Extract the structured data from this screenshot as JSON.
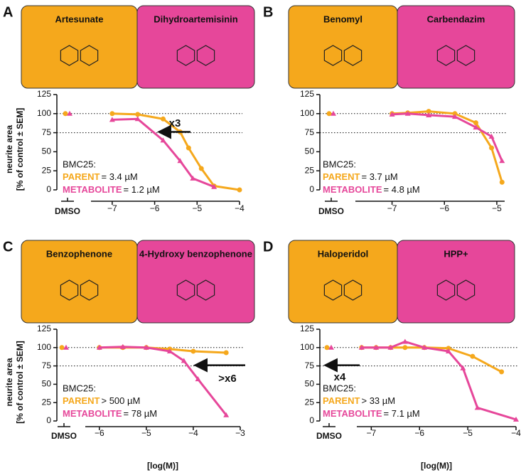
{
  "chart_data": [
    {
      "type": "line",
      "panel": "A",
      "parent_name": "Artesunate",
      "metabolite_name": "Dihydroartemisinin",
      "ylabel": [
        "neurite area",
        "[% of control ± SEM]"
      ],
      "dmso_label": "DMSO",
      "bmc_label": "BMC25:",
      "annotation": "x3",
      "xlim": [
        -7.5,
        -4
      ],
      "xticks": [
        {
          "value": -7,
          "label": "−7"
        },
        {
          "value": -6,
          "label": "−6"
        },
        {
          "value": -5,
          "label": "−5"
        },
        {
          "value": -4,
          "label": "−4"
        }
      ],
      "ylim": [
        0,
        125
      ],
      "yticks": [
        0,
        25,
        50,
        75,
        100,
        125
      ],
      "reference_lines": [
        100,
        75
      ],
      "series": [
        {
          "name": "PARENT",
          "color": "#f5a81c",
          "bmc": "= 3.4 µM",
          "dmso": 100,
          "x": [
            -7,
            -6.4,
            -5.8,
            -5.4,
            -5.2,
            -4.9,
            -4.6,
            -4
          ],
          "values": [
            100,
            99,
            93,
            76,
            55,
            28,
            5,
            0
          ]
        },
        {
          "name": "METABOLITE",
          "color": "#e6479a",
          "bmc": "=  1.2 µM",
          "dmso": 100,
          "x": [
            -7,
            -6.4,
            -5.8,
            -5.4,
            -5.1,
            -4.6
          ],
          "values": [
            92,
            93,
            65,
            38,
            15,
            4
          ]
        }
      ]
    },
    {
      "type": "line",
      "panel": "B",
      "parent_name": "Benomyl",
      "metabolite_name": "Carbendazim",
      "dmso_label": "DMSO",
      "bmc_label": "BMC25:",
      "xlim": [
        -7.7,
        -4.85
      ],
      "xticks": [
        {
          "value": -7,
          "label": "−7"
        },
        {
          "value": -6,
          "label": "−6"
        },
        {
          "value": -5,
          "label": "−5"
        }
      ],
      "ylim": [
        0,
        125
      ],
      "yticks": [
        0,
        25,
        50,
        75,
        100,
        125
      ],
      "reference_lines": [
        100,
        75
      ],
      "series": [
        {
          "name": "PARENT",
          "color": "#f5a81c",
          "bmc": "= 3.7 µM",
          "dmso": 100,
          "x": [
            -7,
            -6.7,
            -6.3,
            -5.8,
            -5.4,
            -5.1,
            -4.9
          ],
          "values": [
            100,
            101,
            103,
            100,
            88,
            55,
            10
          ]
        },
        {
          "name": "METABOLITE",
          "color": "#e6479a",
          "bmc": "= 4.8 µM",
          "dmso": 100,
          "x": [
            -7,
            -6.7,
            -6.3,
            -5.8,
            -5.4,
            -5.1,
            -4.9
          ],
          "values": [
            99,
            100,
            98,
            96,
            82,
            70,
            38
          ]
        }
      ]
    },
    {
      "type": "line",
      "panel": "C",
      "parent_name": "Benzophenone",
      "metabolite_name": "4-Hydroxy benzophenone",
      "ylabel": [
        "neurite area",
        "[% of control ± SEM]"
      ],
      "xlabel": "[log(M)]",
      "dmso_label": "DMSO",
      "bmc_label": "BMC25:",
      "annotation": ">x6",
      "xlim": [
        -6.3,
        -3
      ],
      "xticks": [
        {
          "value": -6,
          "label": "−6"
        },
        {
          "value": -5,
          "label": "−5"
        },
        {
          "value": -4,
          "label": "−4"
        },
        {
          "value": -3,
          "label": "−3"
        }
      ],
      "ylim": [
        0,
        125
      ],
      "yticks": [
        0,
        25,
        50,
        75,
        100,
        125
      ],
      "reference_lines": [
        100,
        75
      ],
      "series": [
        {
          "name": "PARENT",
          "color": "#f5a81c",
          "bmc": "> 500 µM",
          "dmso": 100,
          "x": [
            -6,
            -5.5,
            -5,
            -4.5,
            -4,
            -3.3
          ],
          "values": [
            100,
            100,
            100,
            98,
            95,
            93
          ]
        },
        {
          "name": "METABOLITE",
          "color": "#e6479a",
          "bmc": "= 78 µM",
          "dmso": 100,
          "x": [
            -6,
            -5.5,
            -5,
            -4.5,
            -4.2,
            -3.9,
            -3.3
          ],
          "values": [
            100,
            101,
            100,
            95,
            82,
            57,
            8
          ]
        }
      ]
    },
    {
      "type": "line",
      "panel": "D",
      "parent_name": "Haloperidol",
      "metabolite_name": "HPP+",
      "xlabel": "[log(M)]",
      "dmso_label": "DMSO",
      "bmc_label": "BMC25:",
      "annotation": "x4",
      "xlim": [
        -7.3,
        -4
      ],
      "xticks": [
        {
          "value": -7,
          "label": "−7"
        },
        {
          "value": -6,
          "label": "−6"
        },
        {
          "value": -5,
          "label": "−5"
        },
        {
          "value": -4,
          "label": "−4"
        }
      ],
      "ylim": [
        0,
        125
      ],
      "yticks": [
        0,
        25,
        50,
        75,
        100,
        125
      ],
      "reference_lines": [
        100,
        75
      ],
      "series": [
        {
          "name": "PARENT",
          "color": "#f5a81c",
          "bmc": "> 33 µM",
          "dmso": 100,
          "x": [
            -7.2,
            -6.9,
            -6.6,
            -6.3,
            -5.9,
            -5.4,
            -4.9,
            -4.3
          ],
          "values": [
            100,
            100,
            100,
            100,
            100,
            99,
            88,
            67
          ]
        },
        {
          "name": "METABOLITE",
          "color": "#e6479a",
          "bmc": "=  7.1 µM",
          "dmso": 100,
          "x": [
            -7.2,
            -6.9,
            -6.6,
            -6.3,
            -5.9,
            -5.4,
            -5.1,
            -4.8,
            -4
          ],
          "values": [
            100,
            100,
            100,
            108,
            100,
            95,
            72,
            18,
            2
          ]
        }
      ]
    }
  ]
}
